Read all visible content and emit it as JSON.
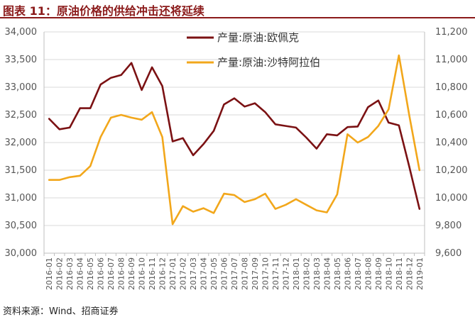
{
  "header": {
    "title": "图表 11：原油价格的供给冲击还将延续"
  },
  "source": "资料来源：Wind、招商证券",
  "chart_data": {
    "type": "line",
    "title": "图表 11：原油价格的供给冲击还将延续",
    "x": [
      "2016-01",
      "2016-02",
      "2016-03",
      "2016-04",
      "2016-05",
      "2016-06",
      "2016-07",
      "2016-08",
      "2016-09",
      "2016-10",
      "2016-11",
      "2016-12",
      "2017-01",
      "2017-02",
      "2017-03",
      "2017-04",
      "2017-05",
      "2017-06",
      "2017-07",
      "2017-08",
      "2017-09",
      "2017-10",
      "2017-11",
      "2017-12",
      "2018-01",
      "2018-02",
      "2018-03",
      "2018-04",
      "2018-05",
      "2018-06",
      "2018-07",
      "2018-08",
      "2018-09",
      "2018-10",
      "2018-11",
      "2018-12",
      "2019-01"
    ],
    "series": [
      {
        "name": "产量:原油:欧佩克",
        "axis": "left",
        "color": "#7B1113",
        "values": [
          32430,
          32240,
          32270,
          32620,
          32620,
          33050,
          33170,
          33220,
          33440,
          32950,
          33360,
          33020,
          32020,
          32080,
          31770,
          31970,
          32210,
          32690,
          32800,
          32650,
          32710,
          32550,
          32330,
          32300,
          32270,
          32090,
          31890,
          32150,
          32130,
          32280,
          32290,
          32640,
          32760,
          32360,
          32310,
          31570,
          30800
        ]
      },
      {
        "name": "产量:原油:沙特阿拉伯",
        "axis": "right",
        "color": "#F2A71B",
        "values": [
          10130,
          10130,
          10150,
          10160,
          10230,
          10440,
          10580,
          10600,
          10580,
          10565,
          10620,
          10440,
          9810,
          9940,
          9900,
          9925,
          9890,
          10030,
          10020,
          9970,
          9990,
          10030,
          9920,
          9950,
          9990,
          9950,
          9910,
          9895,
          10025,
          10460,
          10400,
          10440,
          10520,
          10640,
          11030,
          10600,
          10200
        ]
      }
    ],
    "y_left": {
      "min": 30000,
      "max": 34000,
      "ticks": [
        30000,
        30500,
        31000,
        31500,
        32000,
        32500,
        33000,
        33500,
        34000
      ],
      "tick_labels": [
        "30,000",
        "30,500",
        "31,000",
        "31,500",
        "32,000",
        "32,500",
        "33,000",
        "33,500",
        "34,000"
      ]
    },
    "y_right": {
      "min": 9600,
      "max": 11200,
      "ticks": [
        9600,
        9800,
        10000,
        10200,
        10400,
        10600,
        10800,
        11000,
        11200
      ],
      "tick_labels": [
        "9,600",
        "9,800",
        "10,000",
        "10,200",
        "10,400",
        "10,600",
        "10,800",
        "11,000",
        "11,200"
      ]
    },
    "grid": true,
    "legend": "top-center"
  }
}
